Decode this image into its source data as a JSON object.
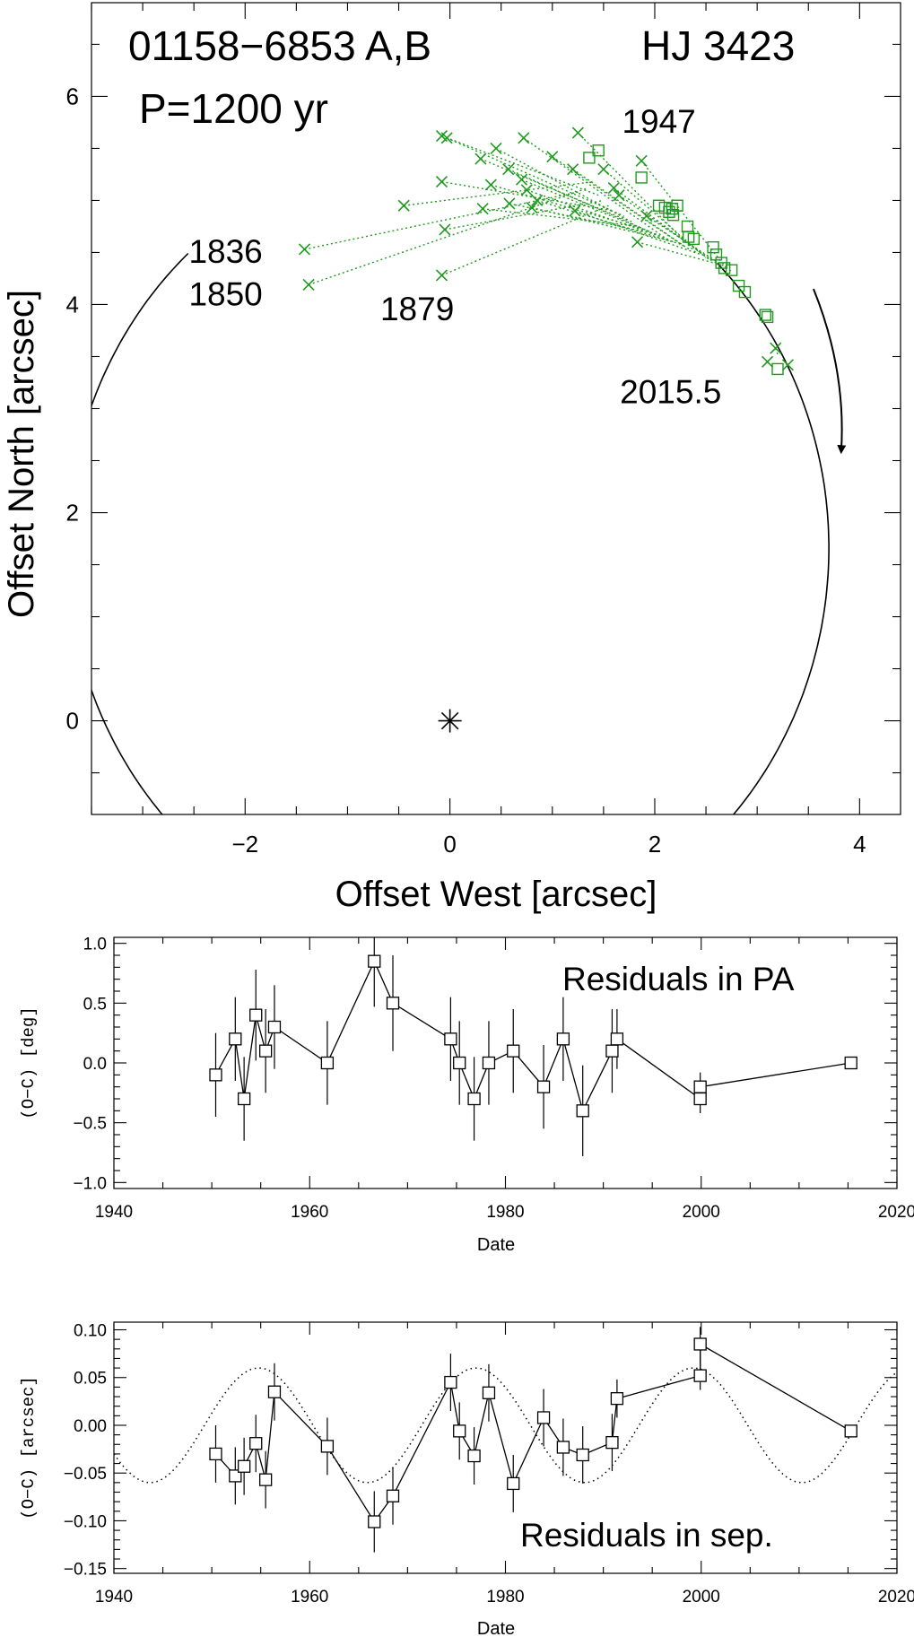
{
  "chart_data": [
    {
      "type": "scatter",
      "name": "orbit",
      "title_left": "01158−6853 A,B",
      "title_right": "HJ 3423",
      "subtitle": "P=1200 yr",
      "xlabel": "Offset West [arcsec]",
      "ylabel": "Offset North [arcsec]",
      "xlim": [
        -3.5,
        4.4
      ],
      "ylim": [
        -0.9,
        6.9
      ],
      "xticks": [
        -2,
        0,
        2,
        4
      ],
      "xtick_labels": [
        "−2",
        "0",
        "2",
        "4"
      ],
      "yticks": [
        0,
        2,
        4,
        6
      ],
      "ytick_labels": [
        "0",
        "2",
        "4",
        "6"
      ],
      "primary_star": [
        0,
        0
      ],
      "annotations": [
        {
          "text": "1836",
          "x": -2.55,
          "y": 4.4
        },
        {
          "text": "1850",
          "x": -2.55,
          "y": 3.99
        },
        {
          "text": "1879",
          "x": -0.68,
          "y": 3.85
        },
        {
          "text": "1947",
          "x": 1.68,
          "y": 5.65
        },
        {
          "text": "2015.5",
          "x": 1.66,
          "y": 3.05
        }
      ],
      "motion_arrow": {
        "from": [
          3.55,
          4.15
        ],
        "to": [
          3.82,
          2.58
        ]
      },
      "orbit_ellipse": {
        "cx": -0.02,
        "cy": 1.66,
        "a_x": 3.72,
        "a_y": 3.87,
        "angle_start": 45,
        "angle_end": 317
      },
      "visual_points": [
        [
          -1.42,
          4.53,
          1.25,
          5.08
        ],
        [
          -1.38,
          4.19,
          1.35,
          5.12
        ],
        [
          -0.45,
          4.95,
          1.4,
          5.18
        ],
        [
          -0.08,
          5.62,
          1.45,
          5.05
        ],
        [
          -0.05,
          4.72,
          1.5,
          5.0
        ],
        [
          -0.08,
          4.28,
          1.55,
          4.95
        ],
        [
          -0.08,
          5.18,
          1.6,
          4.9
        ],
        [
          -0.03,
          5.6,
          1.7,
          4.85
        ],
        [
          0.3,
          5.4,
          1.75,
          4.8
        ],
        [
          0.45,
          5.5,
          1.8,
          4.78
        ],
        [
          0.32,
          4.92,
          1.85,
          4.75
        ],
        [
          0.4,
          5.15,
          1.9,
          4.72
        ],
        [
          0.57,
          5.3,
          1.95,
          4.7
        ],
        [
          0.58,
          4.97,
          2.0,
          4.68
        ],
        [
          0.7,
          5.2,
          2.05,
          4.66
        ],
        [
          0.72,
          5.6,
          2.1,
          4.64
        ],
        [
          0.75,
          5.1,
          2.15,
          4.62
        ],
        [
          0.8,
          4.93,
          2.2,
          4.6
        ],
        [
          0.85,
          5.0,
          2.25,
          4.58
        ],
        [
          1.0,
          5.42,
          2.3,
          4.55
        ],
        [
          1.2,
          5.3,
          2.35,
          4.52
        ],
        [
          1.25,
          5.65,
          2.4,
          4.5
        ],
        [
          1.22,
          4.9,
          2.45,
          4.48
        ],
        [
          1.5,
          5.3,
          2.5,
          4.45
        ],
        [
          1.6,
          5.12,
          2.55,
          4.42
        ],
        [
          1.65,
          5.05,
          2.6,
          4.4
        ],
        [
          1.83,
          4.6,
          2.65,
          4.38
        ],
        [
          1.87,
          5.38,
          2.7,
          4.35
        ],
        [
          1.92,
          4.85,
          2.75,
          4.32
        ],
        [
          3.1,
          3.45,
          3.12,
          3.42
        ],
        [
          3.18,
          3.58,
          3.2,
          3.52
        ],
        [
          3.3,
          3.42,
          3.32,
          3.45
        ]
      ],
      "speckle_points": [
        [
          1.45,
          5.48
        ],
        [
          1.36,
          5.41
        ],
        [
          1.87,
          5.22
        ],
        [
          2.04,
          4.95
        ],
        [
          2.1,
          4.93
        ],
        [
          2.14,
          4.89
        ],
        [
          2.17,
          4.92
        ],
        [
          2.18,
          4.86
        ],
        [
          2.22,
          4.95
        ],
        [
          2.32,
          4.75
        ],
        [
          2.33,
          4.65
        ],
        [
          2.38,
          4.63
        ],
        [
          2.57,
          4.55
        ],
        [
          2.6,
          4.48
        ],
        [
          2.65,
          4.4
        ],
        [
          2.68,
          4.35
        ],
        [
          2.75,
          4.33
        ],
        [
          2.82,
          4.18
        ],
        [
          2.88,
          4.12
        ],
        [
          3.08,
          3.9
        ],
        [
          3.1,
          3.88
        ],
        [
          3.2,
          3.38
        ]
      ]
    },
    {
      "type": "line",
      "name": "pa-residuals",
      "label": "Residuals in PA",
      "xlabel": "Date",
      "ylabel": "(O−C)  [deg]",
      "xlim": [
        1940,
        2020
      ],
      "ylim": [
        -1.05,
        1.05
      ],
      "xticks": [
        1940,
        1960,
        1980,
        2000,
        2020
      ],
      "xtick_labels": [
        "1940",
        "1960",
        "1980",
        "2000",
        "2020"
      ],
      "yticks": [
        -1.0,
        -0.5,
        0.0,
        0.5,
        1.0
      ],
      "ytick_labels": [
        "−1.0",
        "−0.5",
        "0.0",
        "0.5",
        "1.0"
      ],
      "x": [
        1950.4,
        1952.4,
        1953.3,
        1954.5,
        1955.5,
        1956.4,
        1961.8,
        1966.6,
        1968.5,
        1974.4,
        1975.3,
        1976.8,
        1978.3,
        1980.8,
        1983.9,
        1985.9,
        1987.9,
        1990.9,
        1991.4,
        1999.9,
        1999.9,
        2015.3
      ],
      "y": [
        -0.1,
        0.2,
        -0.3,
        0.4,
        0.1,
        0.3,
        0.0,
        0.85,
        0.5,
        0.2,
        0.0,
        -0.3,
        0.0,
        0.1,
        -0.2,
        0.2,
        -0.4,
        0.1,
        0.2,
        -0.3,
        -0.2,
        0.0
      ],
      "err": [
        0.35,
        0.35,
        0.35,
        0.38,
        0.35,
        0.35,
        0.35,
        0.38,
        0.4,
        0.35,
        0.35,
        0.35,
        0.35,
        0.35,
        0.35,
        0.35,
        0.38,
        0.35,
        0.25,
        0.12,
        0.12,
        0.05
      ]
    },
    {
      "type": "line",
      "name": "sep-residuals",
      "label": "Residuals in sep.",
      "xlabel": "Date",
      "ylabel": "(O−C)  [arcsec]",
      "xlim": [
        1940,
        2020
      ],
      "ylim": [
        -0.155,
        0.108
      ],
      "xticks": [
        1940,
        1960,
        1980,
        2000,
        2020
      ],
      "xtick_labels": [
        "1940",
        "1960",
        "1980",
        "2000",
        "2020"
      ],
      "yticks": [
        -0.15,
        -0.1,
        -0.05,
        0.0,
        0.05,
        0.1
      ],
      "ytick_labels": [
        "−0.15",
        "−0.10",
        "−0.05",
        "0.00",
        "0.05",
        "0.10"
      ],
      "x": [
        1950.4,
        1952.4,
        1953.3,
        1954.5,
        1955.5,
        1956.4,
        1961.8,
        1966.6,
        1968.5,
        1974.4,
        1975.3,
        1976.8,
        1978.3,
        1980.8,
        1983.9,
        1985.9,
        1987.9,
        1990.9,
        1991.4,
        1999.9,
        1999.9,
        2015.3
      ],
      "y": [
        -0.03,
        -0.053,
        -0.043,
        -0.019,
        -0.057,
        0.035,
        -0.022,
        -0.101,
        -0.074,
        0.045,
        -0.006,
        -0.032,
        0.034,
        -0.061,
        0.008,
        -0.023,
        -0.031,
        -0.018,
        0.028,
        0.052,
        0.085,
        -0.006
      ],
      "err": [
        0.03,
        0.03,
        0.03,
        0.03,
        0.03,
        0.03,
        0.03,
        0.032,
        0.03,
        0.03,
        0.03,
        0.03,
        0.03,
        0.03,
        0.03,
        0.03,
        0.03,
        0.03,
        0.02,
        0.015,
        0.018,
        0.004
      ],
      "model_curve": {
        "amplitude": 0.06,
        "period_years": 22.2,
        "phase_max_year": 1954.8,
        "style": "dotted"
      }
    }
  ]
}
